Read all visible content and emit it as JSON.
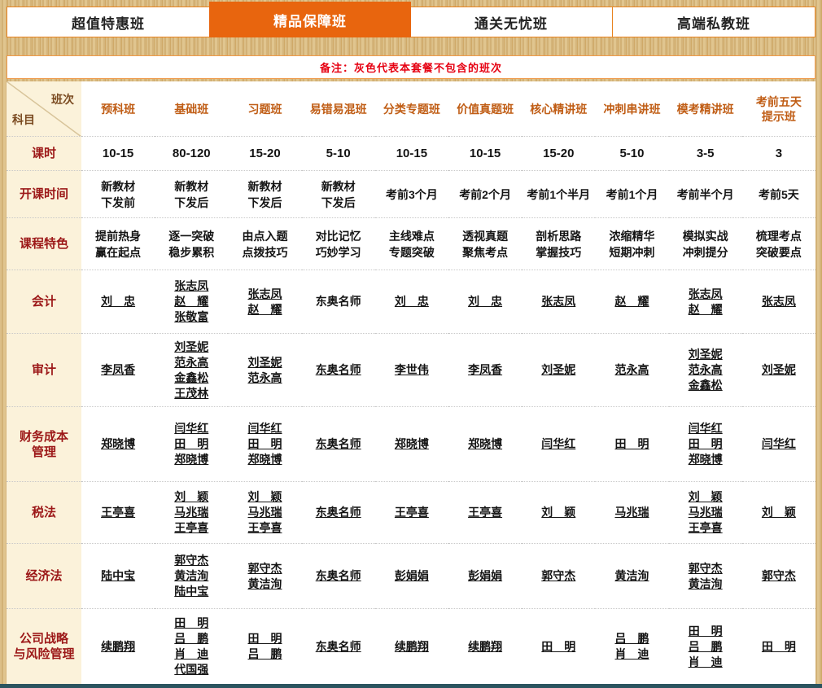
{
  "colors": {
    "accent_orange": "#e8650e",
    "tab_border_orange": "#e8831f",
    "note_red": "#e60012",
    "row_label_red": "#9c1818",
    "column_header_orange": "#c05d15",
    "label_column_cream": "#fbf2da",
    "page_texture_tan": "#d5b57b",
    "bottom_strip_teal": "#2b545f"
  },
  "tabs": [
    {
      "label": "超值特惠班",
      "active": false
    },
    {
      "label": "精品保障班",
      "active": true
    },
    {
      "label": "通关无忧班",
      "active": false
    },
    {
      "label": "高端私教班",
      "active": false
    }
  ],
  "note": {
    "text": "备注：灰色代表本套餐不包含的班次"
  },
  "table": {
    "corner": {
      "top": "班次",
      "bottom": "科目"
    },
    "columns": [
      "预科班",
      "基础班",
      "习题班",
      "易错易混班",
      "分类专题班",
      "价值真题班",
      "核心精讲班",
      "冲刺串讲班",
      "模考精讲班",
      "考前五天\n提示班"
    ],
    "info_rows": [
      {
        "label": "课时",
        "values": [
          "10-15",
          "80-120",
          "15-20",
          "5-10",
          "10-15",
          "10-15",
          "15-20",
          "5-10",
          "3-5",
          "3"
        ]
      },
      {
        "label": "开课时间",
        "values": [
          "新教材\n下发前",
          "新教材\n下发后",
          "新教材\n下发后",
          "新教材\n下发后",
          "考前3个月",
          "考前2个月",
          "考前1个半月",
          "考前1个月",
          "考前半个月",
          "考前5天"
        ]
      },
      {
        "label": "课程特色",
        "values": [
          "提前热身\n赢在起点",
          "逐一突破\n稳步累积",
          "由点入题\n点拨技巧",
          "对比记忆\n巧妙学习",
          "主线难点\n专题突破",
          "透视真题\n聚焦考点",
          "剖析思路\n掌握技巧",
          "浓缩精华\n短期冲刺",
          "模拟实战\n冲刺提分",
          "梳理考点\n突破要点"
        ]
      }
    ],
    "master_name": "东奥名师",
    "subject_rows": [
      {
        "label": "会计",
        "dongao_underlined": false,
        "cells": [
          [
            "刘　忠"
          ],
          [
            "张志凤",
            "赵　耀",
            "张敬富"
          ],
          [
            "张志凤",
            "赵　耀"
          ],
          [
            "东奥名师"
          ],
          [
            "刘　忠"
          ],
          [
            "刘　忠"
          ],
          [
            "张志凤"
          ],
          [
            "赵　耀"
          ],
          [
            "张志凤",
            "赵　耀"
          ],
          [
            "张志凤"
          ]
        ]
      },
      {
        "label": "审计",
        "dongao_underlined": true,
        "cells": [
          [
            "李凤香"
          ],
          [
            "刘圣妮",
            "范永高",
            "金鑫松",
            "王茂林"
          ],
          [
            "刘圣妮",
            "范永高"
          ],
          [
            "东奥名师"
          ],
          [
            "李世伟"
          ],
          [
            "李凤香"
          ],
          [
            "刘圣妮"
          ],
          [
            "范永高"
          ],
          [
            "刘圣妮",
            "范永高",
            "金鑫松"
          ],
          [
            "刘圣妮"
          ]
        ]
      },
      {
        "label": "财务成本\n管理",
        "dongao_underlined": true,
        "cells": [
          [
            "郑晓博"
          ],
          [
            "闫华红",
            "田　明",
            "郑晓博"
          ],
          [
            "闫华红",
            "田　明",
            "郑晓博"
          ],
          [
            "东奥名师"
          ],
          [
            "郑晓博"
          ],
          [
            "郑晓博"
          ],
          [
            "闫华红"
          ],
          [
            "田　明"
          ],
          [
            "闫华红",
            "田　明",
            "郑晓博"
          ],
          [
            "闫华红"
          ]
        ]
      },
      {
        "label": "税法",
        "dongao_underlined": true,
        "cells": [
          [
            "王亭喜"
          ],
          [
            "刘　颖",
            "马兆瑞",
            "王亭喜"
          ],
          [
            "刘　颖",
            "马兆瑞",
            "王亭喜"
          ],
          [
            "东奥名师"
          ],
          [
            "王亭喜"
          ],
          [
            "王亭喜"
          ],
          [
            "刘　颖"
          ],
          [
            "马兆瑞"
          ],
          [
            "刘　颖",
            "马兆瑞",
            "王亭喜"
          ],
          [
            "刘　颖"
          ]
        ]
      },
      {
        "label": "经济法",
        "dongao_underlined": true,
        "cells": [
          [
            "陆中宝"
          ],
          [
            "郭守杰",
            "黄洁洵",
            "陆中宝"
          ],
          [
            "郭守杰",
            "黄洁洵"
          ],
          [
            "东奥名师"
          ],
          [
            "彭娟娟"
          ],
          [
            "彭娟娟"
          ],
          [
            "郭守杰"
          ],
          [
            "黄洁洵"
          ],
          [
            "郭守杰",
            "黄洁洵"
          ],
          [
            "郭守杰"
          ]
        ]
      },
      {
        "label": "公司战略\n与风险管理",
        "dongao_underlined": true,
        "cells": [
          [
            "续鹏翔"
          ],
          [
            "田　明",
            "吕　鹏",
            "肖　迪",
            "代国强"
          ],
          [
            "田　明",
            "吕　鹏"
          ],
          [
            "东奥名师"
          ],
          [
            "续鹏翔"
          ],
          [
            "续鹏翔"
          ],
          [
            "田　明"
          ],
          [
            "吕　鹏",
            "肖　迪"
          ],
          [
            "田　明",
            "吕　鹏",
            "肖　迪"
          ],
          [
            "田　明"
          ]
        ]
      }
    ]
  }
}
